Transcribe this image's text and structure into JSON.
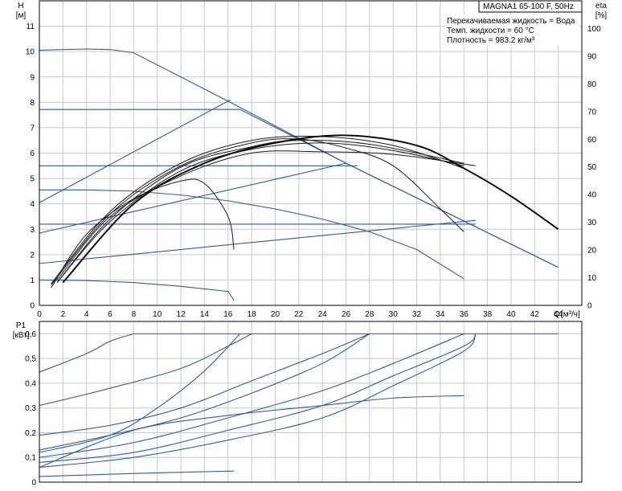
{
  "chart_data": [
    {
      "type": "line",
      "title": "MAGNA1 65-100 F, 50Hz",
      "notes": [
        "Перекачиваемая жидкость = Вода",
        "Темп. жидкости = 60 °C",
        "Плотность = 983.2 кг/м³"
      ],
      "ylabel": "H",
      "yunit": "[м]",
      "y2label": "eta",
      "y2unit": "[%]",
      "xlabel": "Q",
      "xunit": "[м³/ч]",
      "xlim": [
        0,
        46
      ],
      "ylim": [
        0,
        12
      ],
      "y2lim": [
        0,
        110
      ],
      "xticks": [
        0,
        2,
        4,
        6,
        8,
        10,
        12,
        14,
        16,
        18,
        20,
        22,
        24,
        26,
        28,
        30,
        32,
        34,
        36,
        38,
        40,
        42,
        44
      ],
      "yticks": [
        0,
        1,
        2,
        3,
        4,
        5,
        6,
        7,
        8,
        9,
        10,
        11
      ],
      "y2ticks": [
        0,
        10,
        20,
        30,
        40,
        50,
        60,
        70,
        80,
        90,
        100
      ],
      "grid": true,
      "series": [
        {
          "style": "blue",
          "points": [
            [
              0,
              10.05
            ],
            [
              2,
              10.08
            ],
            [
              4,
              10.1
            ],
            [
              6,
              10.08
            ],
            [
              8,
              9.95
            ],
            [
              16.2,
              8.0
            ],
            [
              26,
              5.6
            ],
            [
              44,
              1.5
            ]
          ]
        },
        {
          "style": "blue",
          "points": [
            [
              0,
              7.72
            ],
            [
              17,
              7.72
            ],
            [
              26,
              5.6
            ],
            [
              44,
              1.5
            ]
          ]
        },
        {
          "style": "blue",
          "points": [
            [
              0,
              5.5
            ],
            [
              27,
              5.5
            ]
          ]
        },
        {
          "style": "blue",
          "points": [
            [
              0,
              4.55
            ],
            [
              4,
              4.55
            ],
            [
              8,
              4.5
            ],
            [
              12,
              4.35
            ],
            [
              16,
              4.12
            ],
            [
              20,
              3.8
            ],
            [
              24,
              3.4
            ],
            [
              28,
              2.9
            ],
            [
              32,
              2.2
            ],
            [
              36,
              1.05
            ]
          ]
        },
        {
          "style": "blue",
          "points": [
            [
              0,
              3.2
            ],
            [
              37,
              3.2
            ]
          ]
        },
        {
          "style": "blue",
          "points": [
            [
              0,
              1.0
            ],
            [
              4,
              0.98
            ],
            [
              8,
              0.9
            ],
            [
              12,
              0.75
            ],
            [
              16,
              0.55
            ],
            [
              16.5,
              0.2
            ]
          ]
        },
        {
          "style": "blue",
          "points": [
            [
              0,
              4.05
            ],
            [
              16.2,
              8.1
            ]
          ]
        },
        {
          "style": "blue",
          "points": [
            [
              0,
              2.85
            ],
            [
              26,
              5.6
            ]
          ]
        },
        {
          "style": "blue",
          "points": [
            [
              0,
              1.65
            ],
            [
              37,
              3.35
            ]
          ]
        },
        {
          "style": "black",
          "points": [
            [
              1,
              0.7
            ],
            [
              4,
              2.8
            ],
            [
              8,
              4.2
            ],
            [
              12,
              4.9
            ],
            [
              14,
              4.8
            ],
            [
              16,
              3.5
            ],
            [
              16.5,
              2.2
            ]
          ]
        },
        {
          "style": "black",
          "points": [
            [
              1,
              0.8
            ],
            [
              6,
              3.6
            ],
            [
              12,
              5.5
            ],
            [
              18,
              6.4
            ],
            [
              22,
              6.55
            ],
            [
              26,
              6.2
            ],
            [
              30,
              5.5
            ],
            [
              34,
              3.8
            ],
            [
              36,
              2.9
            ]
          ]
        },
        {
          "style": "black",
          "points": [
            [
              1.5,
              0.9
            ],
            [
              6,
              3.3
            ],
            [
              12,
              5.3
            ],
            [
              18,
              6.15
            ],
            [
              24,
              6.4
            ],
            [
              30,
              6.1
            ],
            [
              36,
              5.5
            ]
          ]
        },
        {
          "style": "black",
          "points": [
            [
              1.5,
              0.9
            ],
            [
              6,
              3.4
            ],
            [
              12,
              5.45
            ],
            [
              18,
              6.25
            ],
            [
              22,
              6.5
            ],
            [
              28,
              6.35
            ],
            [
              36,
              5.6
            ]
          ]
        },
        {
          "style": "black",
          "points": [
            [
              1,
              0.85
            ],
            [
              6,
              3.7
            ],
            [
              12,
              5.6
            ],
            [
              18,
              6.5
            ],
            [
              24,
              6.65
            ],
            [
              30,
              6.3
            ],
            [
              36,
              5.4
            ]
          ]
        },
        {
          "style": "black",
          "points": [
            [
              1.5,
              1.0
            ],
            [
              6,
              3.5
            ],
            [
              12,
              5.1
            ],
            [
              18,
              6.0
            ],
            [
              24,
              6.05
            ],
            [
              30,
              5.95
            ],
            [
              37,
              5.5
            ]
          ]
        },
        {
          "style": "bold",
          "points": [
            [
              2,
              0.9
            ],
            [
              8,
              4.0
            ],
            [
              14,
              5.6
            ],
            [
              20,
              6.4
            ],
            [
              26,
              6.7
            ],
            [
              32,
              6.3
            ],
            [
              36,
              5.4
            ],
            [
              40,
              4.3
            ],
            [
              44,
              3.0
            ]
          ]
        }
      ]
    },
    {
      "type": "line",
      "ylabel": "P1",
      "yunit": "[кВт]",
      "xlim": [
        0,
        46
      ],
      "ylim": [
        0,
        0.65
      ],
      "yticks": [
        "0",
        "0,1",
        "0,2",
        "0,3",
        "0,4",
        "0,5",
        "0,6"
      ],
      "grid": true,
      "series": [
        {
          "points": [
            [
              0,
              0.445
            ],
            [
              4,
              0.52
            ],
            [
              6,
              0.57
            ],
            [
              8,
              0.6
            ]
          ]
        },
        {
          "points": [
            [
              0,
              0.31
            ],
            [
              6,
              0.38
            ],
            [
              12,
              0.46
            ],
            [
              16,
              0.55
            ],
            [
              18,
              0.6
            ]
          ]
        },
        {
          "points": [
            [
              0,
              0.19
            ],
            [
              6,
              0.23
            ],
            [
              12,
              0.3
            ],
            [
              18,
              0.41
            ],
            [
              24,
              0.52
            ],
            [
              28,
              0.6
            ]
          ]
        },
        {
          "points": [
            [
              0,
              0.13
            ],
            [
              6,
              0.19
            ],
            [
              12,
              0.26
            ],
            [
              18,
              0.36
            ],
            [
              24,
              0.48
            ],
            [
              28,
              0.6
            ]
          ]
        },
        {
          "points": [
            [
              0,
              0.1
            ],
            [
              8,
              0.16
            ],
            [
              16,
              0.26
            ],
            [
              24,
              0.37
            ],
            [
              30,
              0.48
            ],
            [
              36,
              0.6
            ]
          ]
        },
        {
          "points": [
            [
              0,
              0.08
            ],
            [
              8,
              0.12
            ],
            [
              16,
              0.21
            ],
            [
              24,
              0.31
            ],
            [
              30,
              0.43
            ],
            [
              36,
              0.55
            ],
            [
              37,
              0.6
            ]
          ]
        },
        {
          "points": [
            [
              0,
              0.06
            ],
            [
              8,
              0.1
            ],
            [
              16,
              0.17
            ],
            [
              24,
              0.26
            ],
            [
              30,
              0.39
            ],
            [
              36,
              0.53
            ],
            [
              37,
              0.6
            ]
          ]
        },
        {
          "points": [
            [
              0,
              0.12
            ],
            [
              6,
              0.19
            ],
            [
              10,
              0.3
            ],
            [
              14,
              0.45
            ],
            [
              17,
              0.6
            ]
          ]
        },
        {
          "points": [
            [
              0,
              0.06
            ],
            [
              8,
              0.21
            ],
            [
              16,
              0.27
            ],
            [
              24,
              0.31
            ],
            [
              30,
              0.34
            ],
            [
              36,
              0.35
            ]
          ]
        },
        {
          "points": [
            [
              0,
              0.023
            ],
            [
              8,
              0.035
            ],
            [
              12,
              0.04
            ],
            [
              16.5,
              0.045
            ]
          ]
        },
        {
          "points": [
            [
              8,
              0.6
            ],
            [
              44,
              0.6
            ]
          ]
        }
      ]
    }
  ]
}
